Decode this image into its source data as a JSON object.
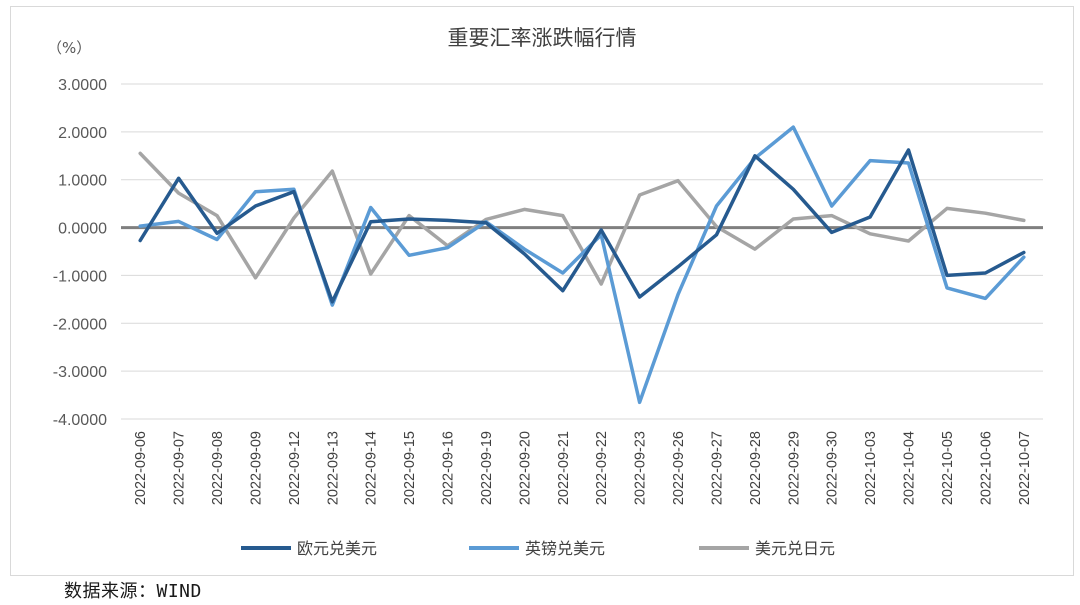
{
  "source": "数据来源：WIND",
  "chart_data": {
    "type": "line",
    "title": "重要汇率涨跌幅行情",
    "unit_label": "（%）",
    "ylim": [
      -4,
      3
    ],
    "yticks": [
      "3.0000",
      "2.0000",
      "1.0000",
      "0.0000",
      "-1.0000",
      "-2.0000",
      "-3.0000",
      "-4.0000"
    ],
    "ytick_values": [
      3,
      2,
      1,
      0,
      -1,
      -2,
      -3,
      -4
    ],
    "grid": true,
    "legend_position": "bottom",
    "categories": [
      "2022-09-06",
      "2022-09-07",
      "2022-09-08",
      "2022-09-09",
      "2022-09-12",
      "2022-09-13",
      "2022-09-14",
      "2022-09-15",
      "2022-09-16",
      "2022-09-19",
      "2022-09-20",
      "2022-09-21",
      "2022-09-22",
      "2022-09-23",
      "2022-09-26",
      "2022-09-27",
      "2022-09-28",
      "2022-09-29",
      "2022-09-30",
      "2022-10-03",
      "2022-10-04",
      "2022-10-05",
      "2022-10-06",
      "2022-10-07"
    ],
    "series": [
      {
        "name": "欧元兑美元",
        "color": "#265a8f",
        "values": [
          -0.27,
          1.03,
          -0.12,
          0.45,
          0.75,
          -1.55,
          0.12,
          0.18,
          0.15,
          0.1,
          -0.55,
          -1.32,
          -0.05,
          -1.45,
          -0.82,
          -0.15,
          1.5,
          0.8,
          -0.1,
          0.22,
          1.62,
          -1.0,
          -0.95,
          -0.52
        ]
      },
      {
        "name": "英镑兑美元",
        "color": "#5b9bd5",
        "values": [
          0.03,
          0.13,
          -0.25,
          0.75,
          0.8,
          -1.62,
          0.42,
          -0.58,
          -0.42,
          0.12,
          -0.45,
          -0.95,
          -0.15,
          -3.65,
          -1.4,
          0.45,
          1.45,
          2.1,
          0.45,
          1.4,
          1.35,
          -1.26,
          -1.48,
          -0.62
        ]
      },
      {
        "name": "美元兑日元",
        "color": "#a5a5a5",
        "values": [
          1.55,
          0.72,
          0.25,
          -1.05,
          0.2,
          1.18,
          -0.97,
          0.25,
          -0.38,
          0.17,
          0.38,
          0.25,
          -1.18,
          0.68,
          0.98,
          0.02,
          -0.45,
          0.18,
          0.25,
          -0.13,
          -0.28,
          0.4,
          0.3,
          0.15
        ]
      }
    ]
  }
}
